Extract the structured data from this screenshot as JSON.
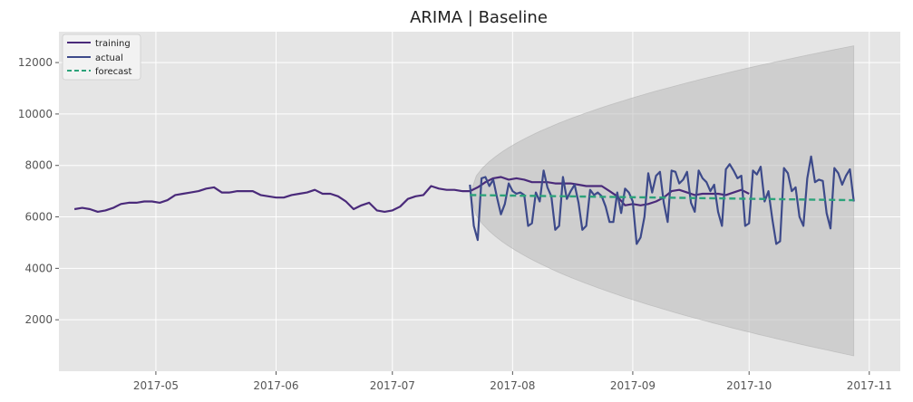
{
  "chart_data": {
    "type": "line",
    "title": "ARIMA  |  Baseline",
    "xlabel": "",
    "ylabel": "",
    "x_range": [
      "2017-04-06",
      "2017-11-09"
    ],
    "ylim": [
      0,
      13200
    ],
    "x_ticks": [
      {
        "date": "2017-05-01",
        "label": "2017-05"
      },
      {
        "date": "2017-06-01",
        "label": "2017-06"
      },
      {
        "date": "2017-07-01",
        "label": "2017-07"
      },
      {
        "date": "2017-08-01",
        "label": "2017-08"
      },
      {
        "date": "2017-09-01",
        "label": "2017-09"
      },
      {
        "date": "2017-10-01",
        "label": "2017-10"
      },
      {
        "date": "2017-11-01",
        "label": "2017-11"
      }
    ],
    "y_ticks": [
      {
        "value": 2000,
        "label": "2000"
      },
      {
        "value": 4000,
        "label": "4000"
      },
      {
        "value": 6000,
        "label": "6000"
      },
      {
        "value": 8000,
        "label": "8000"
      },
      {
        "value": 10000,
        "label": "10000"
      },
      {
        "value": 12000,
        "label": "12000"
      }
    ],
    "grid": true,
    "legend_position": "top-left",
    "series": [
      {
        "name": "training",
        "color": "#4a2a7a",
        "style": "solid",
        "start": "2017-04-10",
        "step_days": 2,
        "values": [
          6300,
          6350,
          6300,
          6200,
          6250,
          6350,
          6500,
          6550,
          6550,
          6600,
          6600,
          6550,
          6650,
          6850,
          6900,
          6950,
          7000,
          7100,
          7150,
          6950,
          6950,
          7000,
          7000,
          7000,
          6850,
          6800,
          6750,
          6750,
          6850,
          6900,
          6950,
          7050,
          6900,
          6900,
          6800,
          6600,
          6300,
          6450,
          6550,
          6250,
          6200,
          6250,
          6400,
          6700,
          6800,
          6850,
          7200,
          7100,
          7050,
          7050,
          7000,
          7000,
          7150,
          7350,
          7500,
          7550,
          7450,
          7500,
          7450,
          7350,
          7350,
          7350,
          7300,
          7300,
          7300,
          7250,
          7200,
          7200,
          7200,
          7000,
          6800,
          6450,
          6500,
          6450,
          6500,
          6600,
          6750,
          7000,
          7050,
          6950,
          6850,
          6900,
          6900,
          6900,
          6850,
          6950,
          7050,
          6900
        ]
      },
      {
        "name": "actual",
        "color": "#3d4a8a",
        "style": "solid",
        "start": "2017-07-21",
        "step_days": 1,
        "values": [
          7250,
          5650,
          5100,
          7500,
          7550,
          7200,
          7450,
          6750,
          6100,
          6500,
          7300,
          7000,
          6900,
          6950,
          6850,
          5650,
          5750,
          6950,
          6600,
          7800,
          7150,
          6800,
          5500,
          5650,
          7550,
          6700,
          7000,
          7250,
          6550,
          5500,
          5650,
          7050,
          6850,
          6950,
          6800,
          6400,
          5800,
          5800,
          6950,
          6150,
          7100,
          6950,
          6600,
          4950,
          5200,
          6000,
          7700,
          6950,
          7600,
          7750,
          6550,
          5800,
          7800,
          7750,
          7300,
          7450,
          7750,
          6550,
          6200,
          7800,
          7500,
          7350,
          7000,
          7250,
          6200,
          5650,
          7850,
          8050,
          7800,
          7500,
          7600,
          5650,
          5750,
          7800,
          7650,
          7950,
          6600,
          7000,
          5900,
          4950,
          5050,
          7900,
          7700,
          7000,
          7150,
          6000,
          5650,
          7500,
          8350,
          7350,
          7450,
          7400,
          6150,
          5550,
          7900,
          7700,
          7250,
          7600,
          7850,
          6600
        ]
      },
      {
        "name": "forecast",
        "color": "#2ca37a",
        "style": "dashed",
        "start": "2017-07-21",
        "end": "2017-10-28",
        "from_value": 6850,
        "to_value": 6650
      }
    ],
    "confidence_band": {
      "start": "2017-07-21",
      "end": "2017-10-28",
      "upper_start": 6850,
      "upper_end": 12650,
      "lower_start": 6850,
      "lower_end": 600,
      "color": "#bbbbbb"
    }
  }
}
